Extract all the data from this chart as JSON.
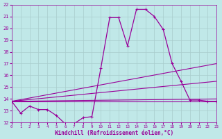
{
  "xlabel": "Windchill (Refroidissement éolien,°C)",
  "x_ticks": [
    0,
    1,
    2,
    3,
    4,
    5,
    6,
    7,
    8,
    9,
    10,
    11,
    12,
    13,
    14,
    15,
    16,
    17,
    18,
    19,
    20,
    21,
    22,
    23
  ],
  "y_ticks": [
    12,
    13,
    14,
    15,
    16,
    17,
    18,
    19,
    20,
    21,
    22
  ],
  "xlim": [
    0,
    23
  ],
  "ylim": [
    12,
    22
  ],
  "background_color": "#c0e8e8",
  "line_color": "#990099",
  "grid_color": "#a8cccc",
  "main_x": [
    0,
    1,
    2,
    3,
    4,
    5,
    6,
    7,
    8,
    9,
    10,
    11,
    12,
    13,
    14,
    15,
    16,
    17,
    18,
    19,
    20,
    21,
    22,
    23
  ],
  "main_y": [
    13.8,
    12.8,
    13.4,
    13.1,
    13.1,
    12.6,
    11.9,
    11.9,
    12.4,
    12.5,
    16.6,
    20.9,
    20.9,
    18.5,
    21.6,
    21.6,
    21.0,
    19.9,
    17.0,
    15.5,
    13.9,
    13.9,
    13.8,
    13.8
  ],
  "straight_lines": [
    {
      "x0": 0,
      "y0": 13.8,
      "x1": 23,
      "y1": 13.8
    },
    {
      "x0": 0,
      "y0": 13.8,
      "x1": 23,
      "y1": 14.0
    },
    {
      "x0": 0,
      "y0": 13.8,
      "x1": 23,
      "y1": 17.0
    },
    {
      "x0": 0,
      "y0": 13.8,
      "x1": 23,
      "y1": 15.5
    }
  ]
}
